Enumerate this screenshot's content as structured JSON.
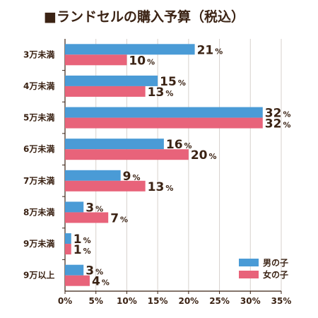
{
  "title": "■ランドセルの購入予算（税込）",
  "percent_suffix": "%",
  "colors": {
    "boys": "#4a9bd6",
    "girls": "#e8637a",
    "text": "#3b2314",
    "axis": "#3b2314",
    "grid": "#d7d1cc"
  },
  "chart_data": {
    "type": "bar",
    "orientation": "horizontal",
    "title": "■ランドセルの購入予算（税込）",
    "categories": [
      "3万未満",
      "4万未満",
      "5万未満",
      "6万未満",
      "7万未満",
      "8万未満",
      "9万未満",
      "9万以上"
    ],
    "series": [
      {
        "name": "男の子",
        "values": [
          21,
          15,
          32,
          16,
          9,
          3,
          1,
          3
        ]
      },
      {
        "name": "女の子",
        "values": [
          10,
          13,
          32,
          20,
          13,
          7,
          1,
          4
        ]
      }
    ],
    "xlim": [
      0,
      35
    ],
    "x_ticks": [
      "0%",
      "5%",
      "10%",
      "15%",
      "20%",
      "25%",
      "30%",
      "35%"
    ],
    "grid": true,
    "legend_position": "bottom-right"
  }
}
